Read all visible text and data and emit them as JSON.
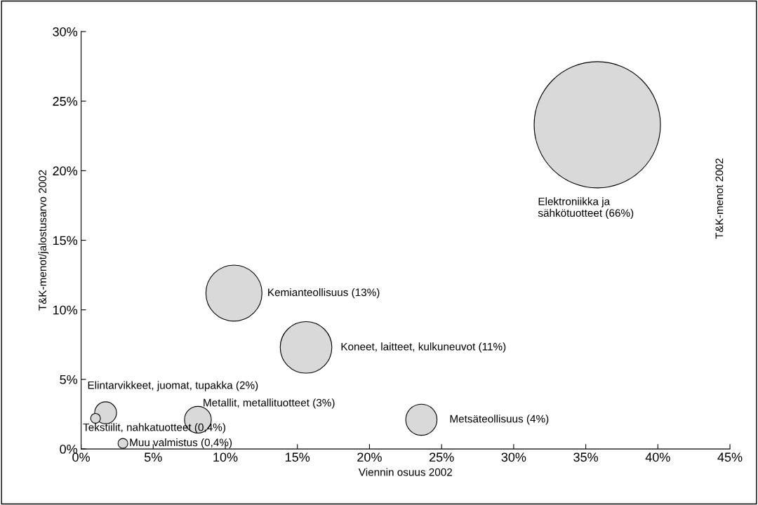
{
  "chart_data": {
    "type": "bubble",
    "xlabel": "Viennin osuus 2002",
    "ylabel": "T&K-menot/jalostusarvo 2002",
    "x": [
      35.8,
      10.6,
      15.6,
      23.6,
      8.1,
      1.7,
      1.0,
      2.9
    ],
    "values": [
      23.3,
      11.2,
      7.3,
      2.1,
      2.1,
      2.6,
      2.2,
      0.4
    ],
    "sizes": [
      1,
      0.197,
      0.167,
      0.061,
      0.045,
      0.03,
      0.006,
      0.006
    ],
    "color": "#d9d9d9",
    "xlim": [
      0,
      45
    ],
    "xticks": [
      {
        "value": 0,
        "label": "0%"
      },
      {
        "value": 5,
        "label": "5%"
      },
      {
        "value": 10,
        "label": "10%"
      },
      {
        "value": 15,
        "label": "15%"
      },
      {
        "value": 20,
        "label": "20%"
      },
      {
        "value": 25,
        "label": "25%"
      },
      {
        "value": 30,
        "label": "30%"
      },
      {
        "value": 35,
        "label": "35%"
      },
      {
        "value": 40,
        "label": "40%"
      },
      {
        "value": 45,
        "label": "45%"
      }
    ],
    "ylim": [
      0,
      30
    ],
    "yticks": [
      {
        "value": 0,
        "label": "0%"
      },
      {
        "value": 5,
        "label": "5%"
      },
      {
        "value": 10,
        "label": "10%"
      },
      {
        "value": 15,
        "label": "15%"
      },
      {
        "value": 20,
        "label": "20%"
      },
      {
        "value": 25,
        "label": "25%"
      },
      {
        "value": 30,
        "label": "30%"
      }
    ],
    "grid": false,
    "legend": false,
    "annotations": [
      "Elektroniikka ja\nsähkötuotteet (66%)",
      "Kemianteollisuus (13%)",
      "Koneet, laitteet, kulkuneuvot (11%)",
      {
        "text": "Metsäteollisuus (4%)",
        "x": 23.6,
        "y": 2.1
      },
      {
        "text": "Metallit, metallituotteet (3%)",
        "x": 8.1,
        "y": 2.1
      },
      {
        "text": "Elintarvikkeet, juomat, tupakka (2%)",
        "x": 1.7,
        "y": 2.6
      },
      {
        "text": "Tekstiilit, nahkatuotteet (0,4%)",
        "x": 1.0,
        "y": 2.2
      },
      {
        "text": "Muu valmistus (0,4%)",
        "x": 2.9,
        "y": 0.4
      },
      "T&K-menot 2002"
    ]
  }
}
